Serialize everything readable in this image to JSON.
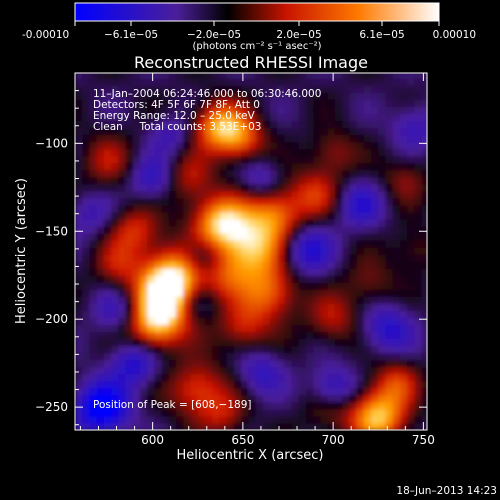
{
  "colorbar": {
    "tick_labels": [
      "-0.00010",
      "−6.1e−05",
      "−2.0e−05",
      "2.0e−05",
      "6.1e−05",
      "0.00010"
    ],
    "range": [
      -0.0001,
      0.0001
    ],
    "unit_label": "(photons cm⁻² s⁻¹ asec⁻²)"
  },
  "chart_data": {
    "type": "heatmap",
    "title": "Reconstructed RHESSI Image",
    "xlabel": "Heliocentric X (arcsec)",
    "ylabel": "Heliocentric Y (arcsec)",
    "xlim": [
      557,
      752
    ],
    "ylim": [
      -263,
      -60
    ],
    "xticks": [
      600,
      650,
      700,
      750
    ],
    "yticks": [
      -100,
      -150,
      -200,
      -250
    ],
    "peak": {
      "x": 608,
      "y": -189
    },
    "annotations": {
      "time_range": "11–Jan–2004 06:24:46.000 to 06:30:46.000",
      "detectors": "Detectors: 4F 5F 6F 7F 8F, Att 0",
      "energy": "Energy Range: 12.0 – 25.0 keV",
      "clean": "Clean     Total counts: 3.53E+03",
      "peak_label": "Position of Peak = [608,−189]"
    },
    "colormap": [
      "#0000ff",
      "#5a2a9a",
      "#000000",
      "#cc1b00",
      "#ff8000",
      "#ffffff"
    ]
  },
  "footer": {
    "date": "18–Jun–2013 14:23"
  }
}
